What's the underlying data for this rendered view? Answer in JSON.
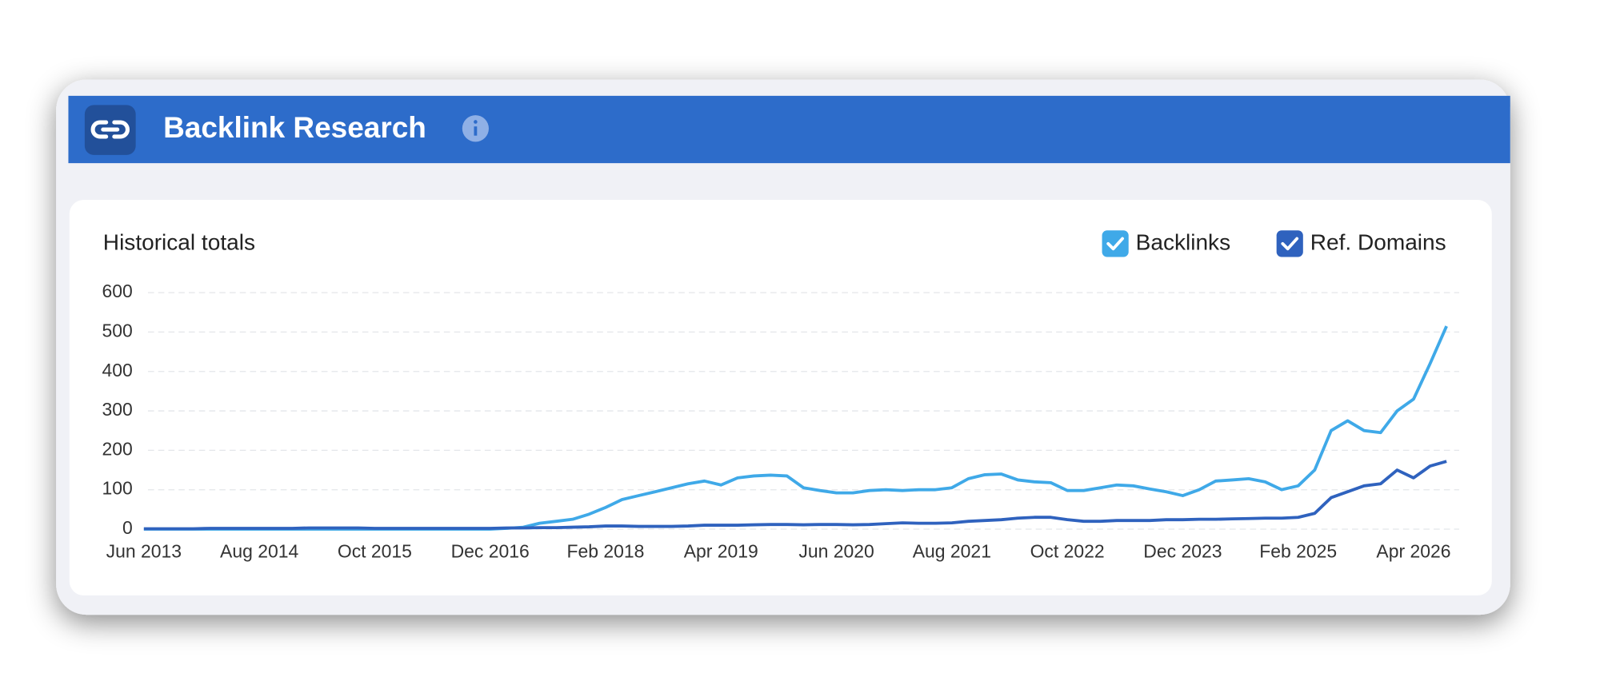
{
  "header": {
    "title": "Backlink Research"
  },
  "chart_data": {
    "type": "line",
    "title": "Historical totals",
    "categories": [
      "Jun 2013",
      null,
      null,
      null,
      null,
      null,
      null,
      "Aug 2014",
      null,
      null,
      null,
      null,
      null,
      null,
      "Oct 2015",
      null,
      null,
      null,
      null,
      null,
      null,
      "Dec 2016",
      null,
      null,
      null,
      null,
      null,
      null,
      "Feb 2018",
      null,
      null,
      null,
      null,
      null,
      null,
      "Apr 2019",
      null,
      null,
      null,
      null,
      null,
      null,
      "Jun 2020",
      null,
      null,
      null,
      null,
      null,
      null,
      "Aug 2021",
      null,
      null,
      null,
      null,
      null,
      null,
      "Oct 2022",
      null,
      null,
      null,
      null,
      null,
      null,
      "Dec 2023",
      null,
      null,
      null,
      null,
      null,
      null,
      "Feb 2025",
      null,
      null,
      null,
      null,
      null,
      null,
      "Apr 2026",
      null,
      null
    ],
    "series": [
      {
        "name": "Backlinks",
        "color": "#3fa9e8",
        "values": [
          0,
          0,
          0,
          0,
          0,
          0,
          0,
          0,
          0,
          0,
          0,
          0,
          0,
          0,
          0,
          0,
          0,
          0,
          0,
          0,
          0,
          0,
          2,
          5,
          15,
          20,
          25,
          38,
          55,
          75,
          85,
          95,
          105,
          115,
          122,
          112,
          130,
          135,
          137,
          135,
          105,
          98,
          92,
          92,
          98,
          100,
          98,
          100,
          100,
          105,
          128,
          138,
          140,
          125,
          120,
          118,
          98,
          98,
          105,
          112,
          110,
          102,
          95,
          85,
          100,
          122,
          125,
          128,
          120,
          100,
          110,
          150,
          250,
          275,
          250,
          245,
          300,
          330,
          420,
          515
        ]
      },
      {
        "name": "Ref. Domains",
        "color": "#2f62be",
        "values": [
          1,
          1,
          1,
          1,
          2,
          2,
          2,
          2,
          2,
          2,
          3,
          3,
          3,
          3,
          2,
          2,
          2,
          2,
          2,
          2,
          2,
          2,
          3,
          3,
          4,
          4,
          5,
          6,
          8,
          8,
          7,
          7,
          7,
          8,
          10,
          10,
          10,
          11,
          12,
          12,
          11,
          12,
          12,
          11,
          12,
          14,
          16,
          15,
          15,
          16,
          20,
          22,
          24,
          28,
          30,
          30,
          24,
          20,
          20,
          22,
          22,
          22,
          24,
          24,
          25,
          25,
          26,
          27,
          28,
          28,
          30,
          40,
          80,
          95,
          110,
          115,
          150,
          130,
          160,
          172
        ]
      }
    ],
    "ylim": [
      0,
      600
    ],
    "yticks": [
      0,
      100,
      200,
      300,
      400,
      500,
      600
    ],
    "grid": true
  }
}
